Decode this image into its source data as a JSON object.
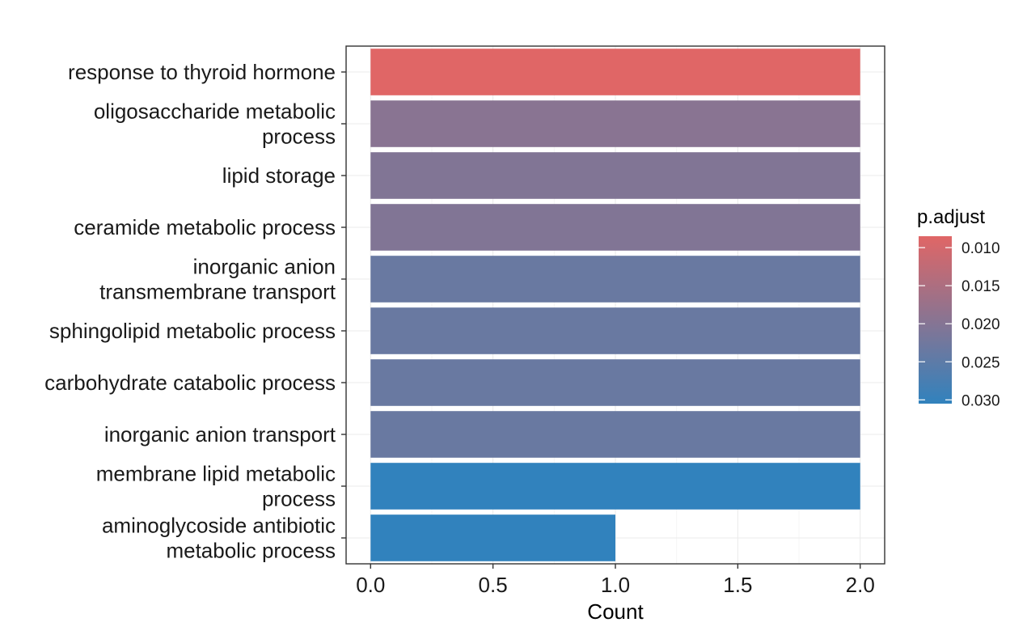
{
  "chart_data": {
    "type": "bar",
    "orientation": "horizontal",
    "categories": [
      "response to thyroid hormone",
      "oligosaccharide metabolic process",
      "lipid storage",
      "ceramide metabolic process",
      "inorganic anion transmembrane transport",
      "sphingolipid metabolic process",
      "carbohydrate catabolic process",
      "inorganic anion transport",
      "membrane lipid metabolic process",
      "aminoglycoside antibiotic metabolic process"
    ],
    "category_lines": [
      [
        "response to thyroid hormone"
      ],
      [
        "oligosaccharide metabolic",
        "process"
      ],
      [
        "lipid storage"
      ],
      [
        "ceramide metabolic process"
      ],
      [
        "inorganic anion",
        "transmembrane transport"
      ],
      [
        "sphingolipid metabolic process"
      ],
      [
        "carbohydrate catabolic process"
      ],
      [
        "inorganic anion transport"
      ],
      [
        "membrane lipid metabolic",
        "process"
      ],
      [
        "aminoglycoside antibiotic",
        "metabolic process"
      ]
    ],
    "values": [
      2,
      2,
      2,
      2,
      2,
      2,
      2,
      2,
      2,
      1
    ],
    "p_adjust": [
      0.0085,
      0.0195,
      0.0205,
      0.0205,
      0.0235,
      0.0235,
      0.0235,
      0.0235,
      0.0305,
      0.0305
    ],
    "xlabel": "Count",
    "ylabel": "",
    "xlim": [
      -0.1,
      2.1
    ],
    "xticks": [
      "0.0",
      "0.5",
      "1.0",
      "1.5",
      "2.0"
    ],
    "xtick_values": [
      0,
      0.5,
      1.0,
      1.5,
      2.0
    ],
    "grid": true,
    "legend": {
      "title": "p.adjust",
      "position": "right",
      "ticks": [
        "0.010",
        "0.015",
        "0.020",
        "0.025",
        "0.030"
      ],
      "tick_values": [
        0.01,
        0.015,
        0.02,
        0.025,
        0.03
      ],
      "range": [
        0.0085,
        0.0305
      ],
      "color_low_p": "#e06666",
      "color_high_p": "#3182bd"
    }
  }
}
